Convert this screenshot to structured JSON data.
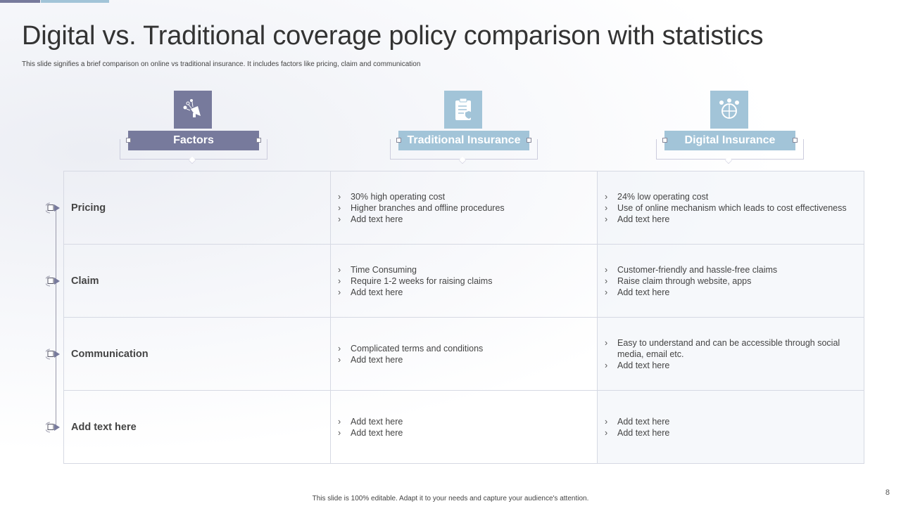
{
  "colors": {
    "factors": "#777a9c",
    "traditional": "#a2c4d8",
    "digital": "#a2c4d8"
  },
  "title": "Digital vs. Traditional coverage policy comparison with statistics",
  "subtitle": "This slide signifies a brief comparison on online vs traditional insurance. It includes factors like pricing, claim and communication",
  "headers": [
    {
      "label": "Factors",
      "icon": "megaphone-icon"
    },
    {
      "label": "Traditional Insurance",
      "icon": "clipboard-shield-icon"
    },
    {
      "label": "Digital Insurance",
      "icon": "globe-network-icon"
    }
  ],
  "rows": [
    {
      "factor": "Pricing",
      "traditional": [
        "30% high operating cost",
        "Higher branches and offline procedures",
        "Add text here"
      ],
      "digital": [
        "24% low operating cost",
        "Use of online mechanism which  leads to cost effectiveness",
        "Add text here"
      ]
    },
    {
      "factor": "Claim",
      "traditional": [
        "Time Consuming",
        "Require 1-2 weeks for raising claims",
        "Add text here"
      ],
      "digital": [
        "Customer-friendly  and hassle-free  claims",
        "Raise claim through website, apps",
        "Add text here"
      ]
    },
    {
      "factor": "Communication",
      "traditional": [
        "Complicated terms and conditions",
        "Add text here"
      ],
      "digital": [
        "Easy to understand and can be accessible through social media, email etc.",
        "Add text here"
      ]
    },
    {
      "factor": "Add  text here",
      "traditional": [
        "Add text here",
        "Add text here"
      ],
      "digital": [
        "Add text here",
        "Add text here"
      ]
    }
  ],
  "footer": "This slide is 100% editable.  Adapt it to your needs and capture your audience's attention.",
  "page_number": "8"
}
